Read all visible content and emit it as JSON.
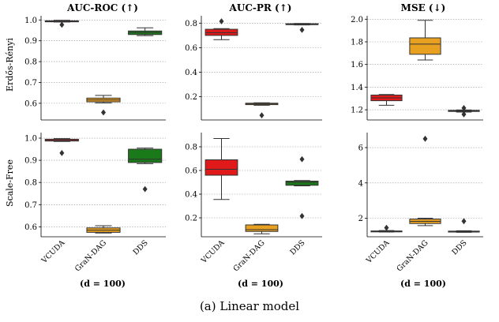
{
  "caption": "(a) Linear model",
  "categories": [
    "VCUDA",
    "GraN-DAG",
    "DDS"
  ],
  "colors": [
    "#e01a1a",
    "#e8a020",
    "#1a7a1a"
  ],
  "metrics": [
    "AUC-ROC (↑)",
    "AUC-PR (↑)",
    "MSE (↓)"
  ],
  "rows": [
    "Erdős-Rényi",
    "Scale-Free"
  ],
  "d_label": "(d = 100)",
  "chart_data": [
    {
      "type": "box",
      "row": "Erdős-Rényi",
      "title": "AUC-ROC (↑)",
      "ylim": [
        0.52,
        1.02
      ],
      "ticks": [
        0.6,
        0.7,
        0.8,
        0.9,
        1.0
      ],
      "tick_labels": [
        "0.6",
        "0.7",
        "0.8",
        "0.9",
        "1.0"
      ],
      "boxes": [
        {
          "category": "VCUDA",
          "whislo": 0.99,
          "q1": 0.991,
          "med": 0.993,
          "q3": 0.996,
          "whishi": 0.998,
          "fliers": [
            0.977
          ]
        },
        {
          "category": "GraN-DAG",
          "whislo": 0.602,
          "q1": 0.607,
          "med": 0.616,
          "q3": 0.625,
          "whishi": 0.638,
          "fliers": [
            0.556
          ]
        },
        {
          "category": "DDS",
          "whislo": 0.925,
          "q1": 0.93,
          "med": 0.94,
          "q3": 0.947,
          "whishi": 0.962,
          "fliers": []
        }
      ]
    },
    {
      "type": "box",
      "row": "Erdős-Rényi",
      "title": "AUC-PR (↑)",
      "ylim": [
        0.01,
        0.86
      ],
      "ticks": [
        0.2,
        0.4,
        0.6,
        0.8
      ],
      "tick_labels": [
        "0.2",
        "0.4",
        "0.6",
        "0.8"
      ],
      "boxes": [
        {
          "category": "VCUDA",
          "whislo": 0.665,
          "q1": 0.7,
          "med": 0.722,
          "q3": 0.75,
          "whishi": 0.755,
          "fliers": [
            0.815
          ]
        },
        {
          "category": "GraN-DAG",
          "whislo": 0.13,
          "q1": 0.135,
          "med": 0.14,
          "q3": 0.147,
          "whishi": 0.15,
          "fliers": [
            0.048
          ]
        },
        {
          "category": "DDS",
          "whislo": 0.785,
          "q1": 0.79,
          "med": 0.792,
          "q3": 0.795,
          "whishi": 0.797,
          "fliers": [
            0.745
          ]
        }
      ]
    },
    {
      "type": "box",
      "row": "Erdős-Rényi",
      "title": "MSE (↓)",
      "ylim": [
        1.11,
        2.03
      ],
      "ticks": [
        1.2,
        1.4,
        1.6,
        1.8,
        2.0
      ],
      "tick_labels": [
        "1.2",
        "1.4",
        "1.6",
        "1.8",
        "2.0"
      ],
      "boxes": [
        {
          "category": "VCUDA",
          "whislo": 1.24,
          "q1": 1.28,
          "med": 1.305,
          "q3": 1.33,
          "whishi": 1.335,
          "fliers": []
        },
        {
          "category": "GraN-DAG",
          "whislo": 1.64,
          "q1": 1.69,
          "med": 1.78,
          "q3": 1.835,
          "whishi": 1.99,
          "fliers": []
        },
        {
          "category": "DDS",
          "whislo": 1.18,
          "q1": 1.185,
          "med": 1.19,
          "q3": 1.195,
          "whishi": 1.198,
          "fliers": [
            1.16,
            1.215
          ]
        }
      ]
    },
    {
      "type": "box",
      "row": "Scale-Free",
      "title": "AUC-ROC (↑)",
      "ylim": [
        0.555,
        1.025
      ],
      "ticks": [
        0.6,
        0.7,
        0.8,
        0.9,
        1.0
      ],
      "tick_labels": [
        "0.6",
        "0.7",
        "0.8",
        "0.9",
        "1.0"
      ],
      "boxes": [
        {
          "category": "VCUDA",
          "whislo": 0.985,
          "q1": 0.987,
          "med": 0.99,
          "q3": 0.995,
          "whishi": 0.998,
          "fliers": [
            0.933
          ]
        },
        {
          "category": "GraN-DAG",
          "whislo": 0.572,
          "q1": 0.575,
          "med": 0.585,
          "q3": 0.595,
          "whishi": 0.605,
          "fliers": []
        },
        {
          "category": "DDS",
          "whislo": 0.885,
          "q1": 0.89,
          "med": 0.905,
          "q3": 0.95,
          "whishi": 0.955,
          "fliers": [
            0.77
          ]
        }
      ]
    },
    {
      "type": "box",
      "row": "Scale-Free",
      "title": "AUC-PR (↑)",
      "ylim": [
        0.04,
        0.92
      ],
      "ticks": [
        0.2,
        0.4,
        0.6,
        0.8
      ],
      "tick_labels": [
        "0.2",
        "0.4",
        "0.6",
        "0.8"
      ],
      "boxes": [
        {
          "category": "VCUDA",
          "whislo": 0.355,
          "q1": 0.56,
          "med": 0.61,
          "q3": 0.69,
          "whishi": 0.87,
          "fliers": []
        },
        {
          "category": "GraN-DAG",
          "whislo": 0.065,
          "q1": 0.085,
          "med": 0.1,
          "q3": 0.14,
          "whishi": 0.145,
          "fliers": []
        },
        {
          "category": "DDS",
          "whislo": 0.47,
          "q1": 0.475,
          "med": 0.5,
          "q3": 0.51,
          "whishi": 0.515,
          "fliers": [
            0.695,
            0.215
          ]
        }
      ]
    },
    {
      "type": "box",
      "row": "Scale-Free",
      "title": "MSE (↓)",
      "ylim": [
        0.95,
        6.85
      ],
      "ticks": [
        2,
        4,
        6
      ],
      "tick_labels": [
        "2",
        "4",
        "6"
      ],
      "boxes": [
        {
          "category": "VCUDA",
          "whislo": 1.22,
          "q1": 1.23,
          "med": 1.25,
          "q3": 1.28,
          "whishi": 1.3,
          "fliers": [
            1.46
          ]
        },
        {
          "category": "GraN-DAG",
          "whislo": 1.58,
          "q1": 1.7,
          "med": 1.82,
          "q3": 1.95,
          "whishi": 2.0,
          "fliers": [
            6.5
          ]
        },
        {
          "category": "DDS",
          "whislo": 1.2,
          "q1": 1.22,
          "med": 1.24,
          "q3": 1.27,
          "whishi": 1.29,
          "fliers": [
            1.83
          ]
        }
      ]
    }
  ]
}
